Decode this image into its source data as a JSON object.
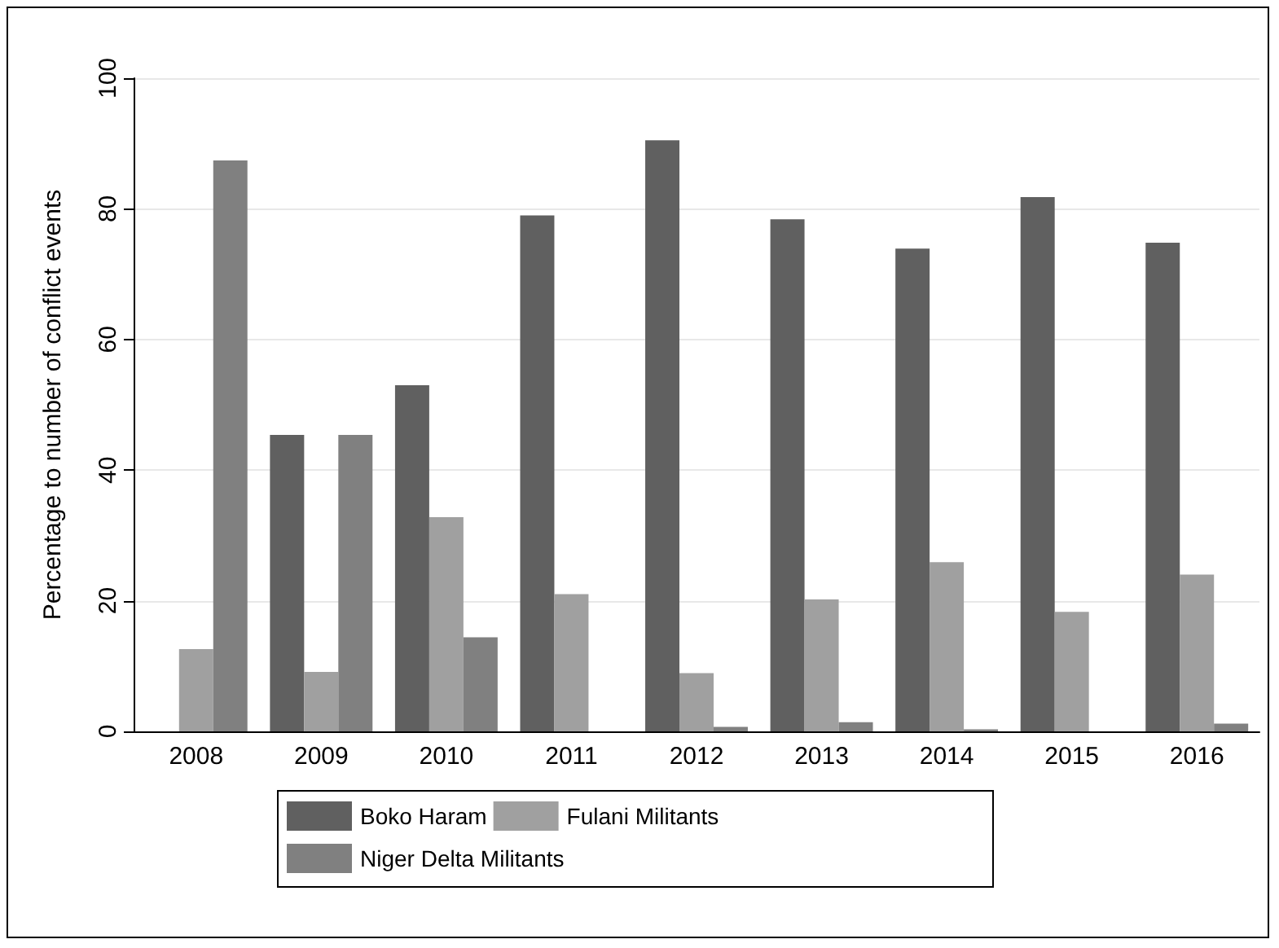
{
  "chart_data": {
    "type": "bar",
    "ylabel": "Percentage to number of conflict events",
    "categories": [
      "2008",
      "2009",
      "2010",
      "2011",
      "2012",
      "2013",
      "2014",
      "2015",
      "2016"
    ],
    "series": [
      {
        "name": "Boko Haram",
        "color": "#606060",
        "values": [
          0,
          45.4,
          53.0,
          79.0,
          90.5,
          78.4,
          73.9,
          81.8,
          74.8
        ]
      },
      {
        "name": "Fulani Militants",
        "color": "#a0a0a0",
        "values": [
          12.6,
          9.1,
          32.8,
          21.0,
          8.9,
          20.2,
          25.9,
          18.3,
          24.0
        ]
      },
      {
        "name": "Niger Delta Militants",
        "color": "#808080",
        "values": [
          87.4,
          45.4,
          14.4,
          0,
          0.7,
          1.4,
          0.3,
          0,
          1.2
        ]
      }
    ],
    "ylim": [
      0,
      100
    ],
    "yticks": [
      0,
      20,
      40,
      60,
      80,
      100
    ],
    "grid": "y",
    "legend": "bottom"
  }
}
